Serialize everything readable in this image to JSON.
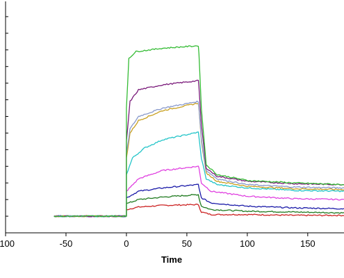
{
  "chart_data": {
    "type": "line",
    "title": "",
    "xlabel": "Time",
    "ylabel": "",
    "xlim": [
      -100,
      180
    ],
    "ylim": [
      -0.2,
      2.6
    ],
    "x_ticks": [
      -100,
      -50,
      0,
      50,
      100,
      150
    ],
    "x_tick_labels": [
      "-100",
      "-50",
      "0",
      "50",
      "100",
      "150"
    ],
    "y_ticks": [
      -0.2,
      0,
      0.2,
      0.4,
      0.6,
      0.8,
      1.0,
      1.2,
      1.4,
      1.6,
      1.8,
      2.0,
      2.2,
      2.4
    ],
    "grid": false,
    "legend": "none",
    "association_start": 0,
    "dissociation_start": 60,
    "series": [
      {
        "color": "#cc2222",
        "values": [
          [
            -60,
            0
          ],
          [
            -0.5,
            0
          ],
          [
            0,
            0
          ],
          [
            0,
            0.08
          ],
          [
            10,
            0.11
          ],
          [
            30,
            0.13
          ],
          [
            59.5,
            0.14
          ],
          [
            60,
            0.12
          ],
          [
            62,
            0.05
          ],
          [
            70,
            0.02
          ],
          [
            100,
            0.02
          ],
          [
            140,
            0.01
          ],
          [
            180,
            0.01
          ]
        ]
      },
      {
        "color": "#1f7a1f",
        "values": [
          [
            -60,
            0
          ],
          [
            -0.5,
            0
          ],
          [
            0,
            0
          ],
          [
            0,
            0.15
          ],
          [
            10,
            0.2
          ],
          [
            30,
            0.23
          ],
          [
            59.5,
            0.26
          ],
          [
            60,
            0.22
          ],
          [
            62,
            0.12
          ],
          [
            70,
            0.08
          ],
          [
            100,
            0.06
          ],
          [
            140,
            0.05
          ],
          [
            180,
            0.04
          ]
        ]
      },
      {
        "color": "#1a1aa8",
        "values": [
          [
            -60,
            0
          ],
          [
            -0.5,
            0
          ],
          [
            0,
            0
          ],
          [
            0,
            0.22
          ],
          [
            10,
            0.3
          ],
          [
            30,
            0.34
          ],
          [
            59.5,
            0.38
          ],
          [
            60,
            0.34
          ],
          [
            62,
            0.22
          ],
          [
            70,
            0.16
          ],
          [
            100,
            0.12
          ],
          [
            140,
            0.1
          ],
          [
            180,
            0.09
          ]
        ]
      },
      {
        "color": "#e040e0",
        "values": [
          [
            -60,
            0
          ],
          [
            -0.5,
            0
          ],
          [
            0,
            0
          ],
          [
            0,
            0.3
          ],
          [
            10,
            0.45
          ],
          [
            30,
            0.55
          ],
          [
            59.5,
            0.6
          ],
          [
            60,
            0.58
          ],
          [
            62,
            0.4
          ],
          [
            70,
            0.3
          ],
          [
            100,
            0.24
          ],
          [
            140,
            0.21
          ],
          [
            180,
            0.2
          ]
        ]
      },
      {
        "color": "#22c4c8",
        "values": [
          [
            -60,
            0
          ],
          [
            -0.5,
            0
          ],
          [
            0,
            0
          ],
          [
            0,
            0.5
          ],
          [
            5,
            0.7
          ],
          [
            15,
            0.82
          ],
          [
            30,
            0.92
          ],
          [
            59.5,
            1.01
          ],
          [
            60,
            0.95
          ],
          [
            62,
            0.7
          ],
          [
            66,
            0.45
          ],
          [
            75,
            0.38
          ],
          [
            100,
            0.34
          ],
          [
            140,
            0.31
          ],
          [
            180,
            0.3
          ]
        ]
      },
      {
        "color": "#c8a020",
        "values": [
          [
            -60,
            0
          ],
          [
            -0.5,
            0
          ],
          [
            0,
            0
          ],
          [
            0,
            0.7
          ],
          [
            3,
            1.0
          ],
          [
            10,
            1.15
          ],
          [
            30,
            1.27
          ],
          [
            59.5,
            1.36
          ],
          [
            60,
            1.3
          ],
          [
            62,
            0.9
          ],
          [
            66,
            0.52
          ],
          [
            75,
            0.42
          ],
          [
            100,
            0.36
          ],
          [
            140,
            0.33
          ],
          [
            180,
            0.32
          ]
        ]
      },
      {
        "color": "#8899cc",
        "values": [
          [
            -60,
            0
          ],
          [
            -0.5,
            0
          ],
          [
            0,
            0
          ],
          [
            0,
            0.75
          ],
          [
            3,
            1.05
          ],
          [
            10,
            1.2
          ],
          [
            30,
            1.3
          ],
          [
            59.5,
            1.38
          ],
          [
            60,
            1.3
          ],
          [
            62,
            0.92
          ],
          [
            66,
            0.55
          ],
          [
            75,
            0.45
          ],
          [
            100,
            0.38
          ],
          [
            140,
            0.35
          ],
          [
            180,
            0.34
          ]
        ]
      },
      {
        "color": "#7a1a7a",
        "values": [
          [
            -60,
            0
          ],
          [
            -0.5,
            0
          ],
          [
            0,
            0
          ],
          [
            0,
            0.9
          ],
          [
            3,
            1.38
          ],
          [
            10,
            1.52
          ],
          [
            30,
            1.58
          ],
          [
            59.5,
            1.63
          ],
          [
            60,
            1.55
          ],
          [
            62,
            1.1
          ],
          [
            66,
            0.58
          ],
          [
            75,
            0.48
          ],
          [
            100,
            0.42
          ],
          [
            140,
            0.39
          ],
          [
            180,
            0.38
          ]
        ]
      },
      {
        "color": "#33bb33",
        "values": [
          [
            -60,
            0
          ],
          [
            -0.5,
            0
          ],
          [
            0,
            0
          ],
          [
            0,
            1.3
          ],
          [
            2,
            1.9
          ],
          [
            8,
            1.98
          ],
          [
            30,
            2.02
          ],
          [
            59.5,
            2.05
          ],
          [
            60,
            1.95
          ],
          [
            62,
            1.3
          ],
          [
            66,
            0.62
          ],
          [
            75,
            0.5
          ],
          [
            100,
            0.43
          ],
          [
            140,
            0.4
          ],
          [
            180,
            0.38
          ]
        ]
      }
    ]
  }
}
